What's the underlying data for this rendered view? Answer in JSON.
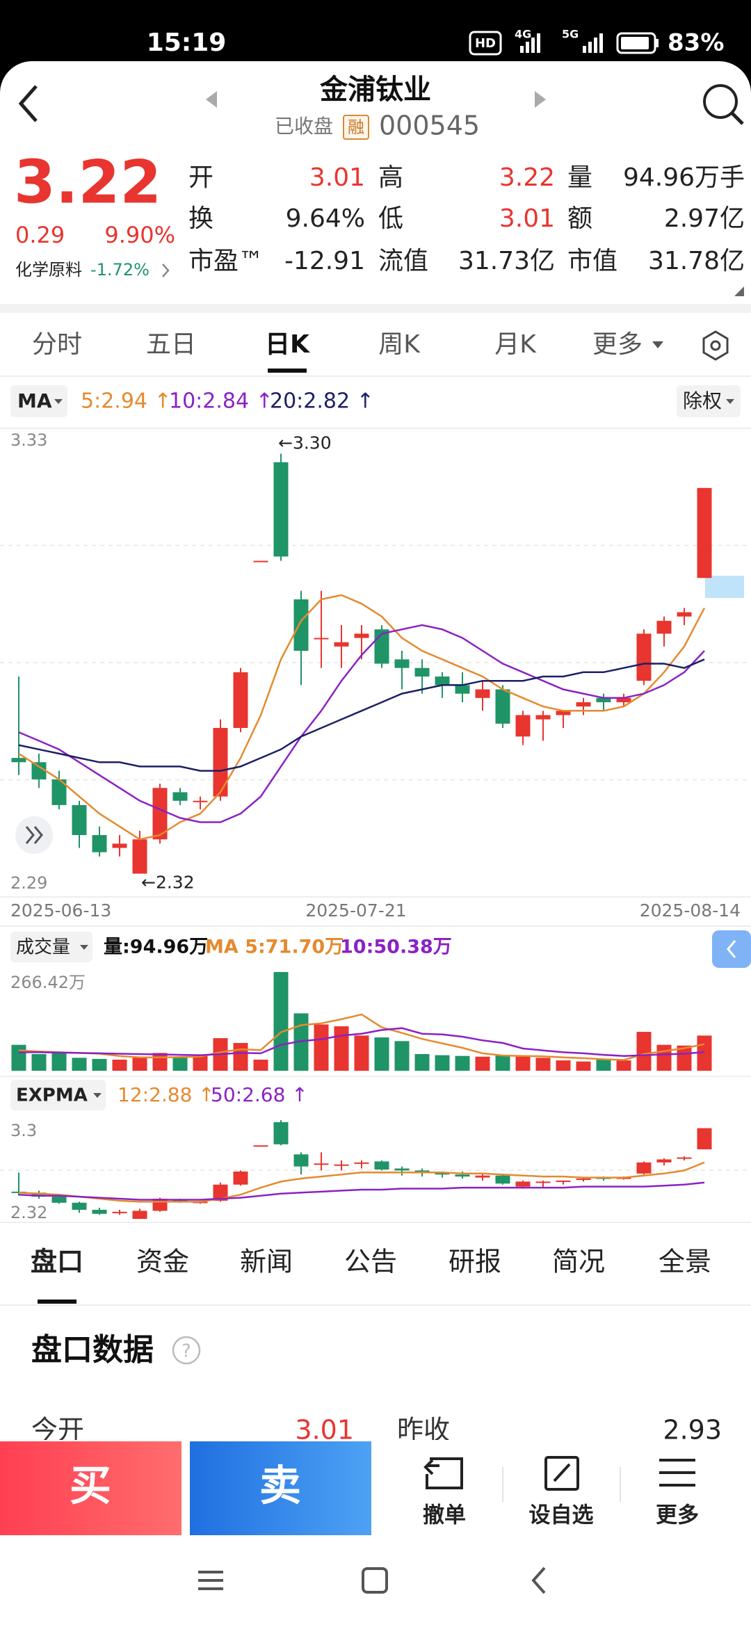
{
  "status_bar": {
    "time": "15:19",
    "indicators": [
      "HD",
      "4G",
      "5G"
    ],
    "battery": "83%"
  },
  "header": {
    "title": "金浦钛业",
    "status": "已收盘",
    "badge": "融",
    "code": "000545"
  },
  "quote": {
    "price": "3.22",
    "change": "0.29",
    "change_pct": "9.90%",
    "sector": "化学原料",
    "sector_change": "-1.72%",
    "fields": [
      [
        {
          "label": "开",
          "value": "3.01",
          "color": "#e8352f"
        },
        {
          "label": "高",
          "value": "3.22",
          "color": "#e8352f"
        },
        {
          "label": "量",
          "value": "94.96万手",
          "color": "#222222"
        }
      ],
      [
        {
          "label": "换",
          "value": "9.64%",
          "color": "#222222"
        },
        {
          "label": "低",
          "value": "3.01",
          "color": "#e8352f"
        },
        {
          "label": "额",
          "value": "2.97亿",
          "color": "#222222"
        }
      ],
      [
        {
          "label": "市盈™",
          "value": "-12.91",
          "color": "#222222"
        },
        {
          "label": "流值",
          "value": "31.73亿",
          "color": "#222222"
        },
        {
          "label": "市值",
          "value": "31.78亿",
          "color": "#222222"
        }
      ]
    ]
  },
  "period_tabs": {
    "items": [
      "分时",
      "五日",
      "日K",
      "周K",
      "月K",
      "更多"
    ],
    "active": 2
  },
  "chart_data": [
    {
      "type": "candlestick",
      "indicator": "MA",
      "adjust": "除权",
      "ylim": [
        2.29,
        3.33
      ],
      "yticks": [
        2.29,
        3.33
      ],
      "x_labels": [
        "2025-06-13",
        "2025-07-21",
        "2025-08-14"
      ],
      "up_color": "#e8352f",
      "down_color": "#1f9467",
      "open": [
        2.59,
        2.58,
        2.54,
        2.48,
        2.41,
        2.38,
        2.32,
        2.4,
        2.51,
        2.49,
        2.5,
        2.66,
        3.05,
        3.28,
        2.96,
        2.87,
        2.85,
        2.87,
        2.89,
        2.82,
        2.8,
        2.78,
        2.76,
        2.73,
        2.75,
        2.64,
        2.68,
        2.69,
        2.71,
        2.73,
        2.72,
        2.77,
        2.88,
        2.92,
        3.01
      ],
      "high": [
        2.78,
        2.6,
        2.56,
        2.49,
        2.43,
        2.41,
        2.42,
        2.53,
        2.52,
        2.5,
        2.68,
        2.8,
        3.05,
        3.3,
        2.98,
        2.98,
        2.9,
        2.9,
        2.9,
        2.84,
        2.82,
        2.79,
        2.79,
        2.77,
        2.76,
        2.7,
        2.7,
        2.7,
        2.73,
        2.74,
        2.74,
        2.89,
        2.92,
        2.94,
        3.22
      ],
      "low": [
        2.55,
        2.52,
        2.47,
        2.38,
        2.36,
        2.36,
        2.32,
        2.39,
        2.48,
        2.47,
        2.49,
        2.65,
        3.05,
        3.05,
        2.76,
        2.8,
        2.8,
        2.82,
        2.8,
        2.75,
        2.74,
        2.73,
        2.72,
        2.7,
        2.66,
        2.62,
        2.63,
        2.66,
        2.69,
        2.7,
        2.71,
        2.76,
        2.85,
        2.9,
        3.01
      ],
      "close": [
        2.58,
        2.54,
        2.48,
        2.41,
        2.37,
        2.39,
        2.4,
        2.52,
        2.49,
        2.49,
        2.66,
        2.79,
        3.05,
        3.06,
        2.84,
        2.87,
        2.86,
        2.88,
        2.81,
        2.8,
        2.78,
        2.76,
        2.74,
        2.75,
        2.67,
        2.69,
        2.69,
        2.7,
        2.72,
        2.72,
        2.73,
        2.88,
        2.91,
        2.93,
        3.22
      ],
      "series": [
        {
          "label": "5:2.94 ↑",
          "color": "#e58a2e",
          "values": [
            2.6,
            2.57,
            2.54,
            2.5,
            2.46,
            2.43,
            2.4,
            2.41,
            2.44,
            2.46,
            2.51,
            2.59,
            2.69,
            2.82,
            2.91,
            2.96,
            2.97,
            2.95,
            2.92,
            2.87,
            2.84,
            2.82,
            2.8,
            2.78,
            2.75,
            2.73,
            2.71,
            2.7,
            2.7,
            2.7,
            2.71,
            2.74,
            2.79,
            2.85,
            2.94
          ]
        },
        {
          "label": "10:2.84 ↑",
          "color": "#8a22c4",
          "values": [
            2.65,
            2.63,
            2.61,
            2.58,
            2.55,
            2.52,
            2.49,
            2.47,
            2.45,
            2.44,
            2.44,
            2.46,
            2.5,
            2.57,
            2.64,
            2.7,
            2.77,
            2.83,
            2.88,
            2.89,
            2.9,
            2.89,
            2.87,
            2.84,
            2.81,
            2.79,
            2.77,
            2.75,
            2.74,
            2.73,
            2.73,
            2.74,
            2.76,
            2.79,
            2.84
          ]
        },
        {
          "label": "20:2.82 ↑",
          "color": "#1c1f66",
          "values": [
            2.62,
            2.61,
            2.6,
            2.59,
            2.58,
            2.58,
            2.57,
            2.57,
            2.57,
            2.56,
            2.56,
            2.57,
            2.59,
            2.61,
            2.64,
            2.66,
            2.68,
            2.7,
            2.72,
            2.74,
            2.75,
            2.76,
            2.76,
            2.77,
            2.77,
            2.77,
            2.78,
            2.78,
            2.79,
            2.79,
            2.8,
            2.81,
            2.81,
            2.8,
            2.82
          ]
        }
      ],
      "annotations": [
        {
          "text": "←3.30",
          "index": 13,
          "value": 3.3,
          "position": "above"
        },
        {
          "text": "←2.32",
          "index": 6,
          "value": 2.32,
          "position": "below"
        }
      ]
    },
    {
      "type": "bar",
      "title": "成交量",
      "current_label": "量:94.96万",
      "ylim": [
        0,
        266.42
      ],
      "yticks": [
        {
          "value": 266.42,
          "label": "266.42万"
        }
      ],
      "values": [
        70,
        45,
        48,
        35,
        32,
        30,
        35,
        48,
        38,
        40,
        88,
        75,
        30,
        266.42,
        155,
        125,
        120,
        95,
        90,
        80,
        45,
        42,
        40,
        38,
        42,
        38,
        35,
        28,
        25,
        30,
        28,
        105,
        70,
        68,
        94.96
      ],
      "series": [
        {
          "label": "MA 5:71.70万",
          "color": "#e58a2e",
          "values": [
            55,
            52,
            50,
            48,
            46,
            40,
            36,
            36,
            37,
            38,
            50,
            58,
            56,
            104,
            123,
            128,
            139,
            152,
            117,
            102,
            86,
            74,
            62,
            47,
            41,
            40,
            39,
            36,
            34,
            31,
            29,
            45,
            53,
            61,
            71.7
          ]
        },
        {
          "label": "10:50.38万",
          "color": "#8a22c4",
          "values": [
            50,
            50,
            49,
            48,
            47,
            46,
            45,
            44,
            43,
            42,
            45,
            48,
            47,
            70,
            80,
            85,
            95,
            100,
            110,
            115,
            100,
            98,
            92,
            82,
            75,
            60,
            55,
            50,
            47,
            43,
            40,
            42,
            44,
            46,
            50.38
          ]
        }
      ]
    },
    {
      "type": "candlestick",
      "indicator": "EXPMA",
      "ylim": [
        2.32,
        3.3
      ],
      "yticks": [
        2.32,
        3.3
      ],
      "series": [
        {
          "label": "12:2.88 ↑",
          "color": "#e58a2e",
          "values": [
            2.58,
            2.57,
            2.56,
            2.54,
            2.52,
            2.5,
            2.49,
            2.49,
            2.49,
            2.49,
            2.52,
            2.56,
            2.63,
            2.69,
            2.72,
            2.74,
            2.76,
            2.78,
            2.78,
            2.78,
            2.78,
            2.78,
            2.77,
            2.77,
            2.76,
            2.75,
            2.74,
            2.74,
            2.73,
            2.73,
            2.73,
            2.75,
            2.77,
            2.8,
            2.88
          ]
        },
        {
          "label": "50:2.68 ↑",
          "color": "#8a22c4",
          "values": [
            2.56,
            2.55,
            2.55,
            2.54,
            2.53,
            2.52,
            2.51,
            2.51,
            2.51,
            2.51,
            2.52,
            2.53,
            2.55,
            2.57,
            2.58,
            2.59,
            2.6,
            2.61,
            2.61,
            2.62,
            2.62,
            2.62,
            2.63,
            2.63,
            2.63,
            2.63,
            2.63,
            2.63,
            2.64,
            2.64,
            2.64,
            2.64,
            2.65,
            2.66,
            2.68
          ]
        }
      ]
    }
  ],
  "info_tabs": {
    "items": [
      "盘口",
      "资金",
      "新闻",
      "公告",
      "研报",
      "简况",
      "全景"
    ],
    "active": 0
  },
  "order_book": {
    "title": "盘口数据",
    "help_icon": "?",
    "rows": [
      [
        {
          "label": "今开",
          "value": "3.01",
          "color": "#e8352f"
        },
        {
          "label": "昨收",
          "value": "2.93",
          "color": "#222222"
        }
      ]
    ]
  },
  "action_bar": {
    "buy": "买",
    "sell": "卖",
    "actions": [
      "撤单",
      "设自选",
      "更多"
    ]
  }
}
